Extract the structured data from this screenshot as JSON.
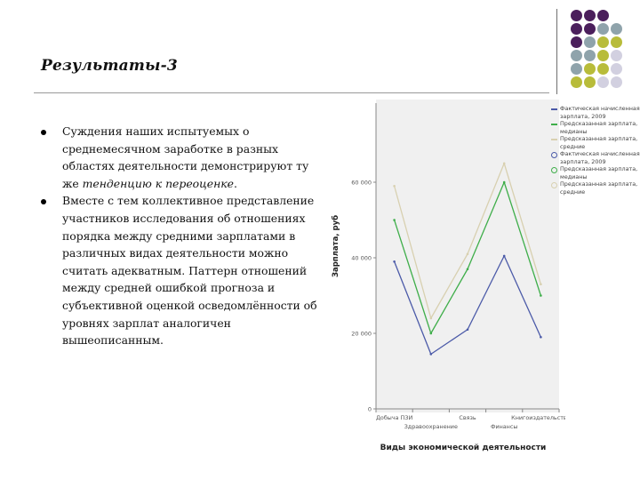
{
  "slide": {
    "title": "Результаты-3",
    "bullets": [
      {
        "text_before": "Суждения наших испытуемых о среднемесячном заработке в разных областях деятельности демонстрируют ту же ",
        "emphasis": "тенденцию к переоценке",
        "text_after": "."
      },
      {
        "text_before": "Вместе с тем коллективное представление участников исследования об отношениях порядка между средними зарплатами в различных видах деятельности можно считать адекватным. Паттерн отношений между средней ошибкой прогноза и субъективной оценкой осведомлённости об уровнях зарплат аналогичен вышеописанным.",
        "emphasis": "",
        "text_after": ""
      }
    ]
  },
  "decor": {
    "dot_colors": [
      "#4b1f5c",
      "#8fa3ab",
      "#b8bc3a",
      "#d2d0e0"
    ]
  },
  "chart_data": {
    "type": "line",
    "xlabel": "Виды экономической деятельности",
    "ylabel": "Зарплата, руб",
    "ylim": [
      0,
      80000
    ],
    "yticks": [
      0,
      20000,
      40000,
      60000
    ],
    "ytick_labels": [
      "0",
      "20 000",
      "40 000",
      "60 000"
    ],
    "categories": [
      "Добыча ПЗИ",
      "Здравоохранение",
      "Связь",
      "Финансы",
      "Книгоиздательство"
    ],
    "category_labels": [
      {
        "text": "Добыча ПЗИ",
        "row": 0
      },
      {
        "text": "Здравоохранение",
        "row": 1
      },
      {
        "text": "Связь",
        "row": 0
      },
      {
        "text": "Финансы",
        "row": 1
      },
      {
        "text": "Книгоиздательство",
        "row": 0
      }
    ],
    "grid": false,
    "legend_position": "right",
    "series": [
      {
        "name": "Фактическая начисленная зарплата, 2009",
        "color": "#4b5aa8",
        "values": [
          39000,
          14500,
          21000,
          40500,
          19000
        ]
      },
      {
        "name": "Предсказанная зарплата, медианы",
        "color": "#3fae4a",
        "values": [
          50000,
          20000,
          37000,
          60000,
          30000
        ]
      },
      {
        "name": "Предсказанная зарплата, средние",
        "color": "#d8d0b0",
        "values": [
          59000,
          24000,
          41000,
          65000,
          33000
        ]
      }
    ],
    "legend": [
      {
        "text": "Фактическая начисленная зарплата, 2009",
        "color": "#4b5aa8",
        "marker": "line"
      },
      {
        "text": "Предсказанная зарплата, медианы",
        "color": "#3fae4a",
        "marker": "line"
      },
      {
        "text": "Предсказанная зарплата, средние",
        "color": "#d8d0b0",
        "marker": "line"
      },
      {
        "text": "Фактическая начисленная зарплата, 2009",
        "color": "#4b5aa8",
        "marker": "circle"
      },
      {
        "text": "Предсказанная зарплата, медианы",
        "color": "#3fae4a",
        "marker": "circle"
      },
      {
        "text": "Предсказанная зарплата, средние",
        "color": "#d8d0b0",
        "marker": "circle"
      }
    ]
  }
}
